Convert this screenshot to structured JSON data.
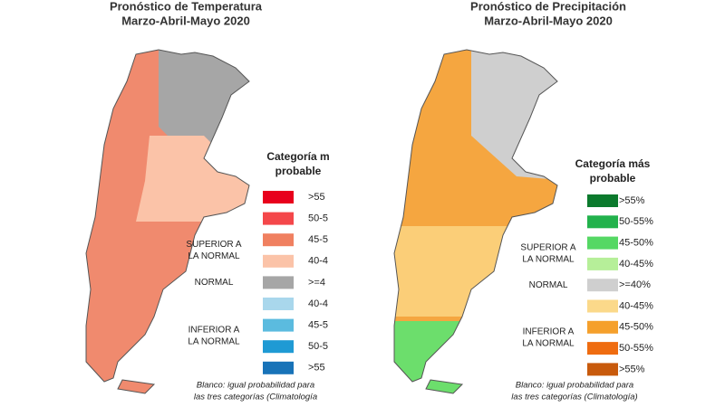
{
  "maps": [
    {
      "title": "Pronóstico de Temperatura",
      "subtitle": "Marzo-Abril-Mayo 2020",
      "legend_title": [
        "Categoría m",
        "probable"
      ],
      "legend": [
        {
          "label": ">55",
          "color": "#e8001c"
        },
        {
          "label": "50-5",
          "color": "#f4474a"
        },
        {
          "label": "45-5",
          "color": "#f08060"
        },
        {
          "label": "40-4",
          "color": "#fbc3a8"
        },
        {
          "label": ">=4",
          "color": "#a6a6a6"
        },
        {
          "label": "40-4",
          "color": "#a9d7ec"
        },
        {
          "label": "45-5",
          "color": "#5bbbdf"
        },
        {
          "label": "50-5",
          "color": "#1f9ad4"
        },
        {
          "label": ">55",
          "color": "#1873b8"
        }
      ],
      "groups": [
        [
          "SUPERIOR A",
          "LA NORMAL"
        ],
        [
          "NORMAL"
        ],
        [
          "INFERIOR A",
          "LA NORMAL"
        ]
      ],
      "footnote": [
        "Blanco: igual probabilidad para",
        "las tres categorías (Climatología"
      ]
    },
    {
      "title": "Pronóstico de Precipitación",
      "subtitle": "Marzo-Abril-Mayo 2020",
      "legend_title": [
        "Categoría más",
        "probable"
      ],
      "legend": [
        {
          "label": ">55%",
          "color": "#0b7a2d"
        },
        {
          "label": "50-55%",
          "color": "#22b24c"
        },
        {
          "label": "45-50%",
          "color": "#55d864"
        },
        {
          "label": "40-45%",
          "color": "#b6ef99"
        },
        {
          "label": ">=40%",
          "color": "#cfcfcf"
        },
        {
          "label": "40-45%",
          "color": "#fbd98a"
        },
        {
          "label": "45-50%",
          "color": "#f5a02c"
        },
        {
          "label": "50-55%",
          "color": "#ef6c10"
        },
        {
          "label": ">55%",
          "color": "#c85a0c"
        }
      ],
      "groups": [
        [
          "SUPERIOR A",
          "LA NORMAL"
        ],
        [
          "NORMAL"
        ],
        [
          "INFERIOR A",
          "LA NORMAL"
        ]
      ],
      "footnote": [
        "Blanco: igual probabilidad para",
        "las tres categorías (Climatología)"
      ]
    }
  ]
}
